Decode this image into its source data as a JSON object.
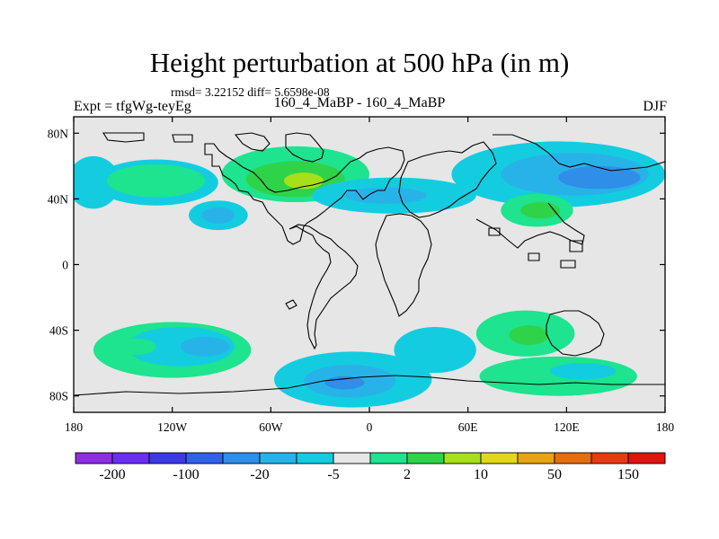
{
  "title": "Height perturbation at 500 hPa (in m)",
  "stats": "rmsd= 3.22152 diff= 5.6598e-08",
  "left_label": "Expt = tfgWg-teyEg",
  "center_label": "160_4_MaBP - 160_4_MaBP",
  "right_label": "DJF",
  "axes": {
    "x_ticks": [
      {
        "lon": -180,
        "label": "180"
      },
      {
        "lon": -120,
        "label": "120W"
      },
      {
        "lon": -60,
        "label": "60W"
      },
      {
        "lon": 0,
        "label": "0"
      },
      {
        "lon": 60,
        "label": "60E"
      },
      {
        "lon": 120,
        "label": "120E"
      },
      {
        "lon": 180,
        "label": "180"
      }
    ],
    "y_ticks": [
      {
        "lat": 80,
        "label": "80N"
      },
      {
        "lat": 40,
        "label": "40N"
      },
      {
        "lat": 0,
        "label": "0"
      },
      {
        "lat": -40,
        "label": "40S"
      },
      {
        "lat": -80,
        "label": "80S"
      }
    ],
    "lon_range": [
      -180,
      180
    ],
    "lat_range": [
      -90,
      90
    ]
  },
  "colorbar": {
    "colors": [
      "#8e2ee0",
      "#6a2ff2",
      "#3c3ae3",
      "#2f62e6",
      "#2f8ee8",
      "#28b3e8",
      "#14cce0",
      "#e6e6e6",
      "#1ee38f",
      "#2fd34a",
      "#a7e01a",
      "#e1d81a",
      "#e6a414",
      "#e66e12",
      "#e53c12",
      "#e01510"
    ],
    "labels": [
      {
        "value": "-200",
        "index": 1
      },
      {
        "value": "-100",
        "index": 3
      },
      {
        "value": "-20",
        "index": 5
      },
      {
        "value": "-5",
        "index": 7
      },
      {
        "value": "2",
        "index": 9
      },
      {
        "value": "10",
        "index": 11
      },
      {
        "value": "50",
        "index": 13
      },
      {
        "value": "150",
        "index": 15
      }
    ]
  },
  "regions": [
    {
      "fill": "#14cce0",
      "lon": -168,
      "lat": 50,
      "rx": 16,
      "ry": 16
    },
    {
      "fill": "#14cce0",
      "lon": -130,
      "lat": 50,
      "rx": 38,
      "ry": 14
    },
    {
      "fill": "#1ee38f",
      "lon": -130,
      "lat": 51,
      "rx": 30,
      "ry": 10
    },
    {
      "fill": "#14cce0",
      "lon": -92,
      "lat": 30,
      "rx": 18,
      "ry": 9
    },
    {
      "fill": "#28b3e8",
      "lon": -92,
      "lat": 30,
      "rx": 10,
      "ry": 5
    },
    {
      "fill": "#1ee38f",
      "lon": -45,
      "lat": 55,
      "rx": 45,
      "ry": 17
    },
    {
      "fill": "#2fd34a",
      "lon": -45,
      "lat": 52,
      "rx": 30,
      "ry": 11
    },
    {
      "fill": "#a7e01a",
      "lon": -40,
      "lat": 51,
      "rx": 12,
      "ry": 5
    },
    {
      "fill": "#14cce0",
      "lon": 15,
      "lat": 42,
      "rx": 50,
      "ry": 11
    },
    {
      "fill": "#28b3e8",
      "lon": 10,
      "lat": 42,
      "rx": 25,
      "ry": 5
    },
    {
      "fill": "#14cce0",
      "lon": 115,
      "lat": 55,
      "rx": 65,
      "ry": 20
    },
    {
      "fill": "#28b3e8",
      "lon": 125,
      "lat": 55,
      "rx": 45,
      "ry": 13
    },
    {
      "fill": "#2f8ee8",
      "lon": 140,
      "lat": 53,
      "rx": 25,
      "ry": 7
    },
    {
      "fill": "#1ee38f",
      "lon": 102,
      "lat": 33,
      "rx": 22,
      "ry": 10
    },
    {
      "fill": "#2fd34a",
      "lon": 104,
      "lat": 33,
      "rx": 12,
      "ry": 5
    },
    {
      "fill": "#1ee38f",
      "lon": -120,
      "lat": -52,
      "rx": 48,
      "ry": 17
    },
    {
      "fill": "#14cce0",
      "lon": -115,
      "lat": -50,
      "rx": 33,
      "ry": 12
    },
    {
      "fill": "#28b3e8",
      "lon": -100,
      "lat": -50,
      "rx": 15,
      "ry": 6
    },
    {
      "fill": "#1ee38f",
      "lon": -142,
      "lat": -50,
      "rx": 12,
      "ry": 5
    },
    {
      "fill": "#14cce0",
      "lon": -10,
      "lat": -70,
      "rx": 48,
      "ry": 17
    },
    {
      "fill": "#28b3e8",
      "lon": -12,
      "lat": -71,
      "rx": 28,
      "ry": 10
    },
    {
      "fill": "#2f8ee8",
      "lon": -15,
      "lat": -72,
      "rx": 12,
      "ry": 4
    },
    {
      "fill": "#14cce0",
      "lon": 40,
      "lat": -52,
      "rx": 25,
      "ry": 14
    },
    {
      "fill": "#1ee38f",
      "lon": 95,
      "lat": -42,
      "rx": 30,
      "ry": 14
    },
    {
      "fill": "#2fd34a",
      "lon": 97,
      "lat": -43,
      "rx": 12,
      "ry": 6
    },
    {
      "fill": "#1ee38f",
      "lon": 115,
      "lat": -68,
      "rx": 48,
      "ry": 12
    },
    {
      "fill": "#14cce0",
      "lon": 130,
      "lat": -65,
      "rx": 20,
      "ry": 5
    }
  ]
}
